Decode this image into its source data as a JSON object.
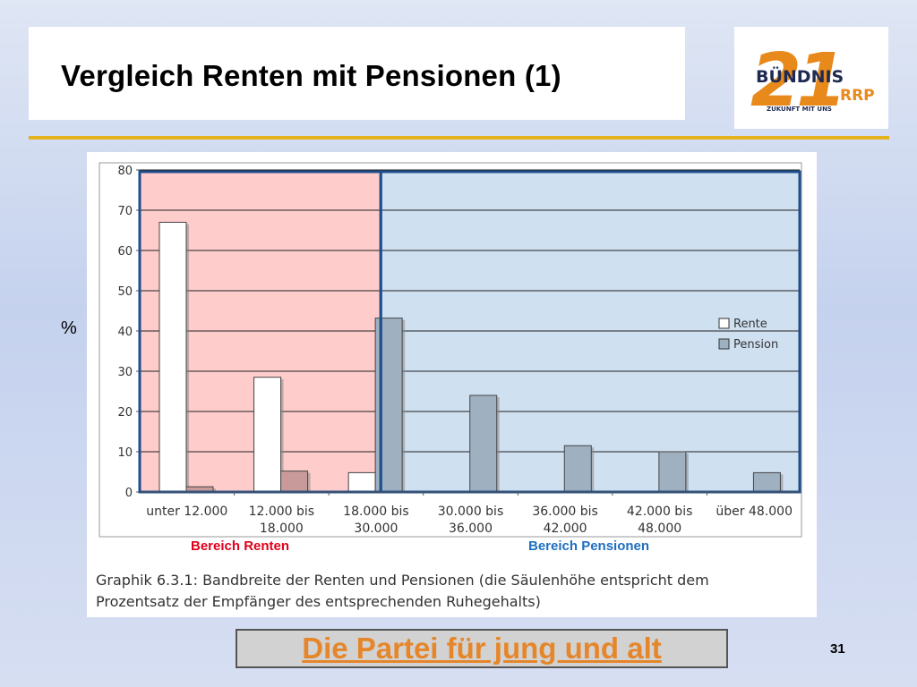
{
  "slide": {
    "title": "Vergleich Renten mit Pensionen (1)",
    "y_unit": "%",
    "footer": "Die Partei für jung und alt",
    "page_number": "31",
    "gold_rule_color": "#e3b21d",
    "footer_color": "#e6862a"
  },
  "logo": {
    "number": "21",
    "name": "BÜNDNIS",
    "suffix": "RRP",
    "tagline": "ZUKUNFT MIT UNS",
    "orange": "#e8891c",
    "navy": "#1f2a52"
  },
  "chart_data": {
    "type": "bar",
    "categories": [
      "unter 12.000",
      "12.000 bis 18.000",
      "18.000 bis 30.000",
      "30.000 bis 36.000",
      "36.000 bis 42.000",
      "42.000 bis 48.000",
      "über 48.000"
    ],
    "series": [
      {
        "name": "Rente",
        "values": [
          67,
          28.5,
          4.8,
          0,
          0,
          0,
          0
        ],
        "color": "#ffffff"
      },
      {
        "name": "Pension",
        "values": [
          1.3,
          5.2,
          43.2,
          24,
          11.5,
          10,
          4.8
        ],
        "color": "#9fb0c1"
      }
    ],
    "ylim": [
      0,
      80
    ],
    "yticks": [
      0,
      10,
      20,
      30,
      40,
      50,
      60,
      70,
      80
    ],
    "grid": true,
    "legend_position": "right",
    "regions": [
      {
        "label": "Bereich Renten",
        "color": "#ffcccc",
        "label_color": "#e0001a"
      },
      {
        "label": "Bereich Pensionen",
        "color": "#cfe0f1",
        "label_color": "#1e6fbf"
      }
    ],
    "caption": "Graphik 6.3.1: Bandbreite der Renten und Pensionen (die Säulenhöhe entspricht dem Prozentsatz der Empfänger des entsprechenden Ruhegehalts)"
  }
}
